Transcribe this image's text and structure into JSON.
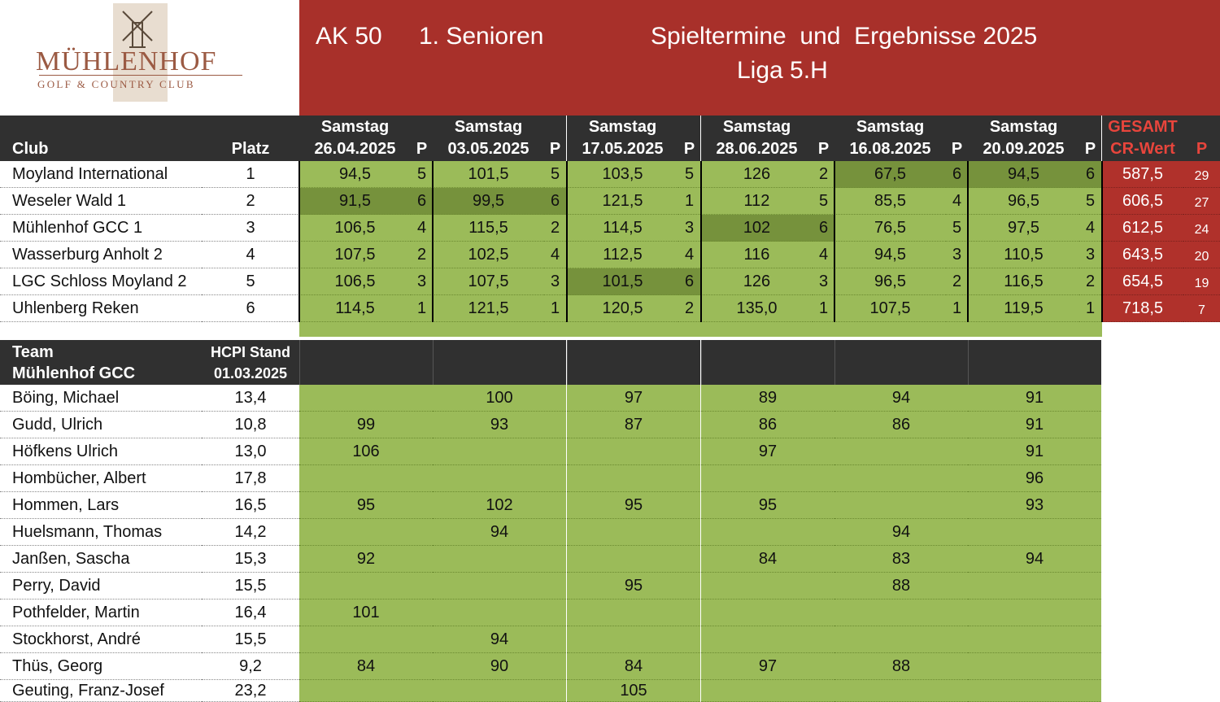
{
  "logo": {
    "wordmark": "MÜHLENHOF",
    "subtitle": "GOLF & COUNTRY CLUB"
  },
  "banner": {
    "category": "AK 50",
    "team": "1. Senioren",
    "title": "Spieltermine  und  Ergebnisse 2025",
    "league": "Liga 5.H"
  },
  "standings": {
    "club_label": "Club",
    "platz_label": "Platz",
    "day_label": "Samstag",
    "p_label": "P",
    "dates": [
      "26.04.2025",
      "03.05.2025",
      "17.05.2025",
      "28.06.2025",
      "16.08.2025",
      "20.09.2025"
    ],
    "gesamt_label": "GESAMT",
    "cr_label": "CR-Wert",
    "total_p_label": "P",
    "rows": [
      {
        "club": "Moyland International",
        "platz": "1",
        "scores": [
          "94,5",
          "101,5",
          "103,5",
          "126",
          "67,5",
          "94,5"
        ],
        "points": [
          "5",
          "5",
          "5",
          "2",
          "6",
          "6"
        ],
        "cr": "587,5",
        "p": "29"
      },
      {
        "club": "Weseler Wald 1",
        "platz": "2",
        "scores": [
          "91,5",
          "99,5",
          "121,5",
          "112",
          "85,5",
          "96,5"
        ],
        "points": [
          "6",
          "6",
          "1",
          "5",
          "4",
          "5"
        ],
        "cr": "606,5",
        "p": "27"
      },
      {
        "club": "Mühlenhof GCC 1",
        "platz": "3",
        "scores": [
          "106,5",
          "115,5",
          "114,5",
          "102",
          "76,5",
          "97,5"
        ],
        "points": [
          "4",
          "2",
          "3",
          "6",
          "5",
          "4"
        ],
        "cr": "612,5",
        "p": "24"
      },
      {
        "club": "Wasserburg Anholt 2",
        "platz": "4",
        "scores": [
          "107,5",
          "102,5",
          "112,5",
          "116",
          "94,5",
          "110,5"
        ],
        "points": [
          "2",
          "4",
          "4",
          "4",
          "3",
          "3"
        ],
        "cr": "643,5",
        "p": "20"
      },
      {
        "club": "LGC Schloss Moyland 2",
        "platz": "5",
        "scores": [
          "106,5",
          "107,5",
          "101,5",
          "126",
          "96,5",
          "116,5"
        ],
        "points": [
          "3",
          "3",
          "6",
          "3",
          "2",
          "2"
        ],
        "cr": "654,5",
        "p": "19"
      },
      {
        "club": "Uhlenberg Reken",
        "platz": "6",
        "scores": [
          "114,5",
          "121,5",
          "120,5",
          "135,0",
          "107,5",
          "119,5"
        ],
        "points": [
          "1",
          "1",
          "2",
          "1",
          "1",
          "1"
        ],
        "cr": "718,5",
        "p": "7"
      }
    ],
    "highlight_color": "#76923c",
    "cell_color": "#9bbb59",
    "total_color": "#b0312b"
  },
  "team": {
    "team_label": "Team",
    "team_name": "Mühlenhof GCC",
    "hcpi_label": "HCPI Stand",
    "hcpi_date": "01.03.2025",
    "players": [
      {
        "name": "Böing, Michael",
        "hcpi": "13,4",
        "scores": [
          "",
          "100",
          "97",
          "89",
          "94",
          "91"
        ]
      },
      {
        "name": "Gudd, Ulrich",
        "hcpi": "10,8",
        "scores": [
          "99",
          "93",
          "87",
          "86",
          "86",
          "91"
        ]
      },
      {
        "name": "Höfkens Ulrich",
        "hcpi": "13,0",
        "scores": [
          "106",
          "",
          "",
          "97",
          "",
          "91"
        ]
      },
      {
        "name": "Hombücher, Albert",
        "hcpi": "17,8",
        "scores": [
          "",
          "",
          "",
          "",
          "",
          "96"
        ]
      },
      {
        "name": "Hommen, Lars",
        "hcpi": "16,5",
        "scores": [
          "95",
          "102",
          "95",
          "95",
          "",
          "93"
        ]
      },
      {
        "name": "Huelsmann, Thomas",
        "hcpi": "14,2",
        "scores": [
          "",
          "94",
          "",
          "",
          "94",
          ""
        ]
      },
      {
        "name": "Janßen, Sascha",
        "hcpi": "15,3",
        "scores": [
          "92",
          "",
          "",
          "84",
          "83",
          "94"
        ]
      },
      {
        "name": "Perry, David",
        "hcpi": "15,5",
        "scores": [
          "",
          "",
          "95",
          "",
          "88",
          ""
        ]
      },
      {
        "name": "Pothfelder, Martin",
        "hcpi": "16,4",
        "scores": [
          "101",
          "",
          "",
          "",
          "",
          ""
        ]
      },
      {
        "name": "Stockhorst, André",
        "hcpi": "15,5",
        "scores": [
          "",
          "94",
          "",
          "",
          "",
          ""
        ]
      },
      {
        "name": "Thüs, Georg",
        "hcpi": "9,2",
        "scores": [
          "84",
          "90",
          "84",
          "97",
          "88",
          ""
        ]
      },
      {
        "name": "Geuting, Franz-Josef",
        "hcpi": "23,2",
        "scores": [
          "",
          "",
          "105",
          "",
          "",
          ""
        ]
      }
    ]
  }
}
